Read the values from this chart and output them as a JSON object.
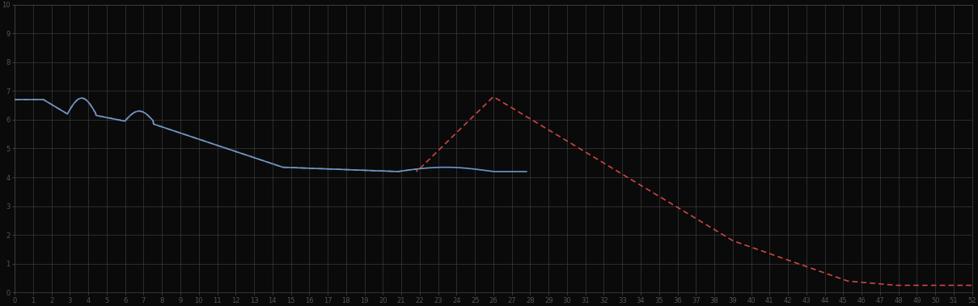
{
  "background_color": "#0a0a0a",
  "plot_bg_color": "#0a0a0a",
  "grid_color": "#3a3a3a",
  "line1_color": "#6699cc",
  "line2_color": "#cc4444",
  "figsize": [
    12.09,
    3.78
  ],
  "dpi": 100,
  "x_min": 0,
  "x_max": 52,
  "y_min": 0,
  "y_max": 10,
  "grid_x_step": 1,
  "grid_y_step": 1,
  "spine_color": "#444444",
  "tick_color": "#555555",
  "tick_labelsize": 6
}
